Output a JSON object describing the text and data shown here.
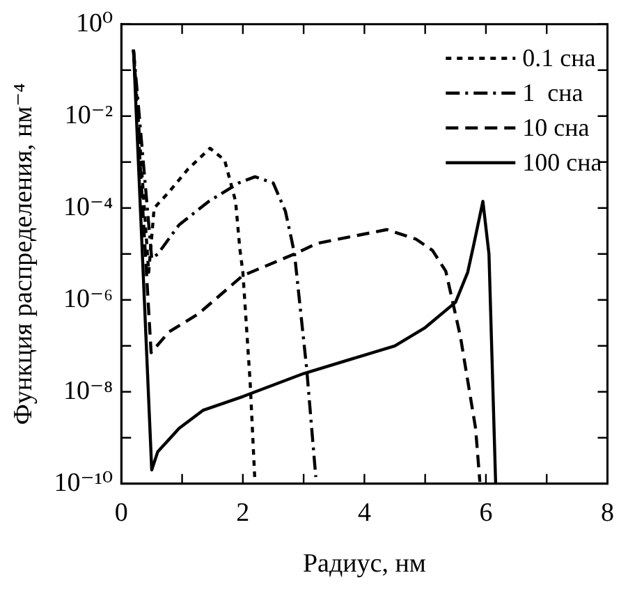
{
  "chart_data": {
    "type": "line",
    "xlabel": "Радиус, нм",
    "ylabel": "Функция распределения, нм⁻⁴",
    "log": "y",
    "xlim": [
      0,
      8
    ],
    "ylim": [
      1e-10,
      1
    ],
    "xticks": [
      0,
      {
        "value": 1,
        "label": null
      },
      2,
      {
        "value": 3,
        "label": null
      },
      4,
      {
        "value": 5,
        "label": null
      },
      6,
      {
        "value": 7,
        "label": null
      },
      8
    ],
    "yticks": [
      {
        "value": 1e-10,
        "label": "10⁻¹⁰"
      },
      {
        "value": 1e-09,
        "label": null
      },
      {
        "value": 1e-08,
        "label": "10⁻⁸"
      },
      {
        "value": 1e-07,
        "label": null
      },
      {
        "value": 1e-06,
        "label": "10⁻⁶"
      },
      {
        "value": 1e-05,
        "label": null
      },
      {
        "value": 0.0001,
        "label": "10⁻⁴"
      },
      {
        "value": 0.001,
        "label": null
      },
      {
        "value": 0.01,
        "label": "10⁻²"
      },
      {
        "value": 0.1,
        "label": null
      },
      {
        "value": 1,
        "label": "10⁰"
      }
    ],
    "grid": false,
    "legend": "top right",
    "marker": "none",
    "series": [
      {
        "name": "0.1 сна",
        "color": "#000000",
        "line_style": "dotted",
        "x": [
          0.2,
          0.45,
          0.54,
          0.78,
          1.1,
          1.46,
          1.7,
          1.88,
          1.95,
          2.0,
          2.12,
          2.2
        ],
        "values": [
          0.28,
          4e-06,
          0.0001,
          0.00022,
          0.00071,
          0.002,
          0.0011,
          0.00014,
          1.3e-05,
          4e-06,
          1.6e-08,
          1e-10
        ]
      },
      {
        "name": "1  сна",
        "color": "#000000",
        "line_style": "dashdot",
        "x": [
          0.2,
          0.5,
          0.6,
          0.95,
          1.44,
          1.93,
          2.2,
          2.5,
          2.7,
          2.8,
          2.85,
          3.05,
          3.2
        ],
        "values": [
          0.28,
          7.9e-06,
          1e-05,
          4.3e-05,
          0.00014,
          0.00035,
          0.00048,
          0.00035,
          8.5e-05,
          2.1e-05,
          1e-05,
          3.2e-08,
          1.4e-10
        ]
      },
      {
        "name": "10 сна",
        "color": "#000000",
        "line_style": "dashed",
        "x": [
          0.2,
          0.49,
          0.78,
          1.27,
          2.0,
          2.85,
          3.22,
          4.37,
          4.85,
          5.12,
          5.34,
          5.58,
          5.83,
          5.9
        ],
        "values": [
          0.28,
          7.1e-08,
          2e-07,
          5e-07,
          3.4e-06,
          1e-05,
          1.7e-05,
          3.4e-05,
          2.1e-05,
          1.2e-05,
          4.2e-06,
          1.6e-07,
          1.6e-09,
          1.1e-10
        ]
      },
      {
        "name": "100 сна",
        "color": "#000000",
        "line_style": "solid",
        "x": [
          0.2,
          0.5,
          0.6,
          0.95,
          1.35,
          2,
          3,
          4,
          4.5,
          5,
          5.5,
          5.7,
          5.8,
          5.95,
          6.05,
          6.16
        ],
        "values": [
          0.28,
          2e-10,
          5e-10,
          1.6e-09,
          4e-09,
          7.9e-09,
          2.5e-08,
          6.3e-08,
          1e-07,
          2.5e-07,
          8.9e-07,
          4e-06,
          1.6e-05,
          0.00014,
          1e-05,
          1e-10
        ]
      }
    ]
  }
}
